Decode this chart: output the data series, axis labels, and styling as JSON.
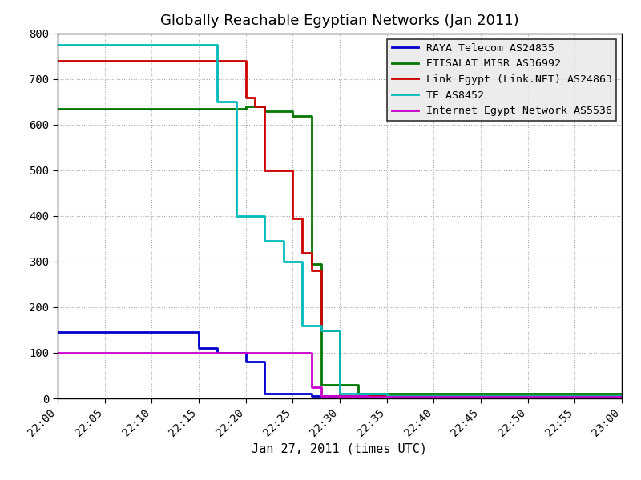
{
  "title": "Globally Reachable Egyptian Networks (Jan 2011)",
  "xlabel": "Jan 27, 2011 (times UTC)",
  "ylim": [
    0,
    800
  ],
  "yticks": [
    0,
    100,
    200,
    300,
    400,
    500,
    600,
    700,
    800
  ],
  "background_color": "#ffffff",
  "grid_color": "#aaaaaa",
  "series": [
    {
      "name": "RAYA Telecom AS24835",
      "color": "#0000cc",
      "linewidth": 2.0,
      "points": [
        [
          0,
          145
        ],
        [
          15,
          145
        ],
        [
          15,
          110
        ],
        [
          17,
          110
        ],
        [
          17,
          100
        ],
        [
          20,
          100
        ],
        [
          20,
          80
        ],
        [
          22,
          80
        ],
        [
          22,
          10
        ],
        [
          27,
          10
        ],
        [
          27,
          5
        ],
        [
          60,
          5
        ]
      ]
    },
    {
      "name": "ETISALAT MISR AS36992",
      "color": "#007700",
      "linewidth": 2.0,
      "points": [
        [
          0,
          635
        ],
        [
          20,
          635
        ],
        [
          20,
          640
        ],
        [
          22,
          640
        ],
        [
          22,
          630
        ],
        [
          25,
          630
        ],
        [
          25,
          620
        ],
        [
          27,
          620
        ],
        [
          27,
          295
        ],
        [
          28,
          295
        ],
        [
          28,
          30
        ],
        [
          32,
          30
        ],
        [
          32,
          10
        ],
        [
          60,
          10
        ]
      ]
    },
    {
      "name": "Link Egypt (Link.NET) AS24863",
      "color": "#cc0000",
      "linewidth": 2.0,
      "points": [
        [
          0,
          740
        ],
        [
          20,
          740
        ],
        [
          20,
          660
        ],
        [
          21,
          660
        ],
        [
          21,
          640
        ],
        [
          22,
          640
        ],
        [
          22,
          500
        ],
        [
          25,
          500
        ],
        [
          25,
          395
        ],
        [
          26,
          395
        ],
        [
          26,
          320
        ],
        [
          27,
          320
        ],
        [
          27,
          280
        ],
        [
          28,
          280
        ],
        [
          28,
          150
        ],
        [
          30,
          150
        ],
        [
          30,
          5
        ],
        [
          32,
          5
        ],
        [
          32,
          0
        ],
        [
          33,
          0
        ],
        [
          33,
          5
        ],
        [
          60,
          5
        ]
      ]
    },
    {
      "name": "TE AS8452",
      "color": "#00bbbb",
      "linewidth": 2.0,
      "points": [
        [
          0,
          775
        ],
        [
          17,
          775
        ],
        [
          17,
          650
        ],
        [
          19,
          650
        ],
        [
          19,
          400
        ],
        [
          22,
          400
        ],
        [
          22,
          345
        ],
        [
          24,
          345
        ],
        [
          24,
          300
        ],
        [
          26,
          300
        ],
        [
          26,
          160
        ],
        [
          28,
          160
        ],
        [
          28,
          150
        ],
        [
          30,
          150
        ],
        [
          30,
          10
        ],
        [
          35,
          10
        ],
        [
          35,
          5
        ],
        [
          60,
          5
        ]
      ]
    },
    {
      "name": "Internet Egypt Network AS5536",
      "color": "#cc00cc",
      "linewidth": 2.0,
      "points": [
        [
          0,
          100
        ],
        [
          27,
          100
        ],
        [
          27,
          25
        ],
        [
          28,
          25
        ],
        [
          28,
          5
        ],
        [
          33,
          5
        ],
        [
          33,
          3
        ],
        [
          60,
          3
        ]
      ]
    }
  ],
  "xtick_minutes": [
    0,
    5,
    10,
    15,
    20,
    25,
    30,
    35,
    40,
    45,
    50,
    55,
    60
  ],
  "xtick_labels": [
    "22:00",
    "22:05",
    "22:10",
    "22:15",
    "22:20",
    "22:25",
    "22:30",
    "22:35",
    "22:40",
    "22:45",
    "22:50",
    "22:55",
    "23:00"
  ]
}
